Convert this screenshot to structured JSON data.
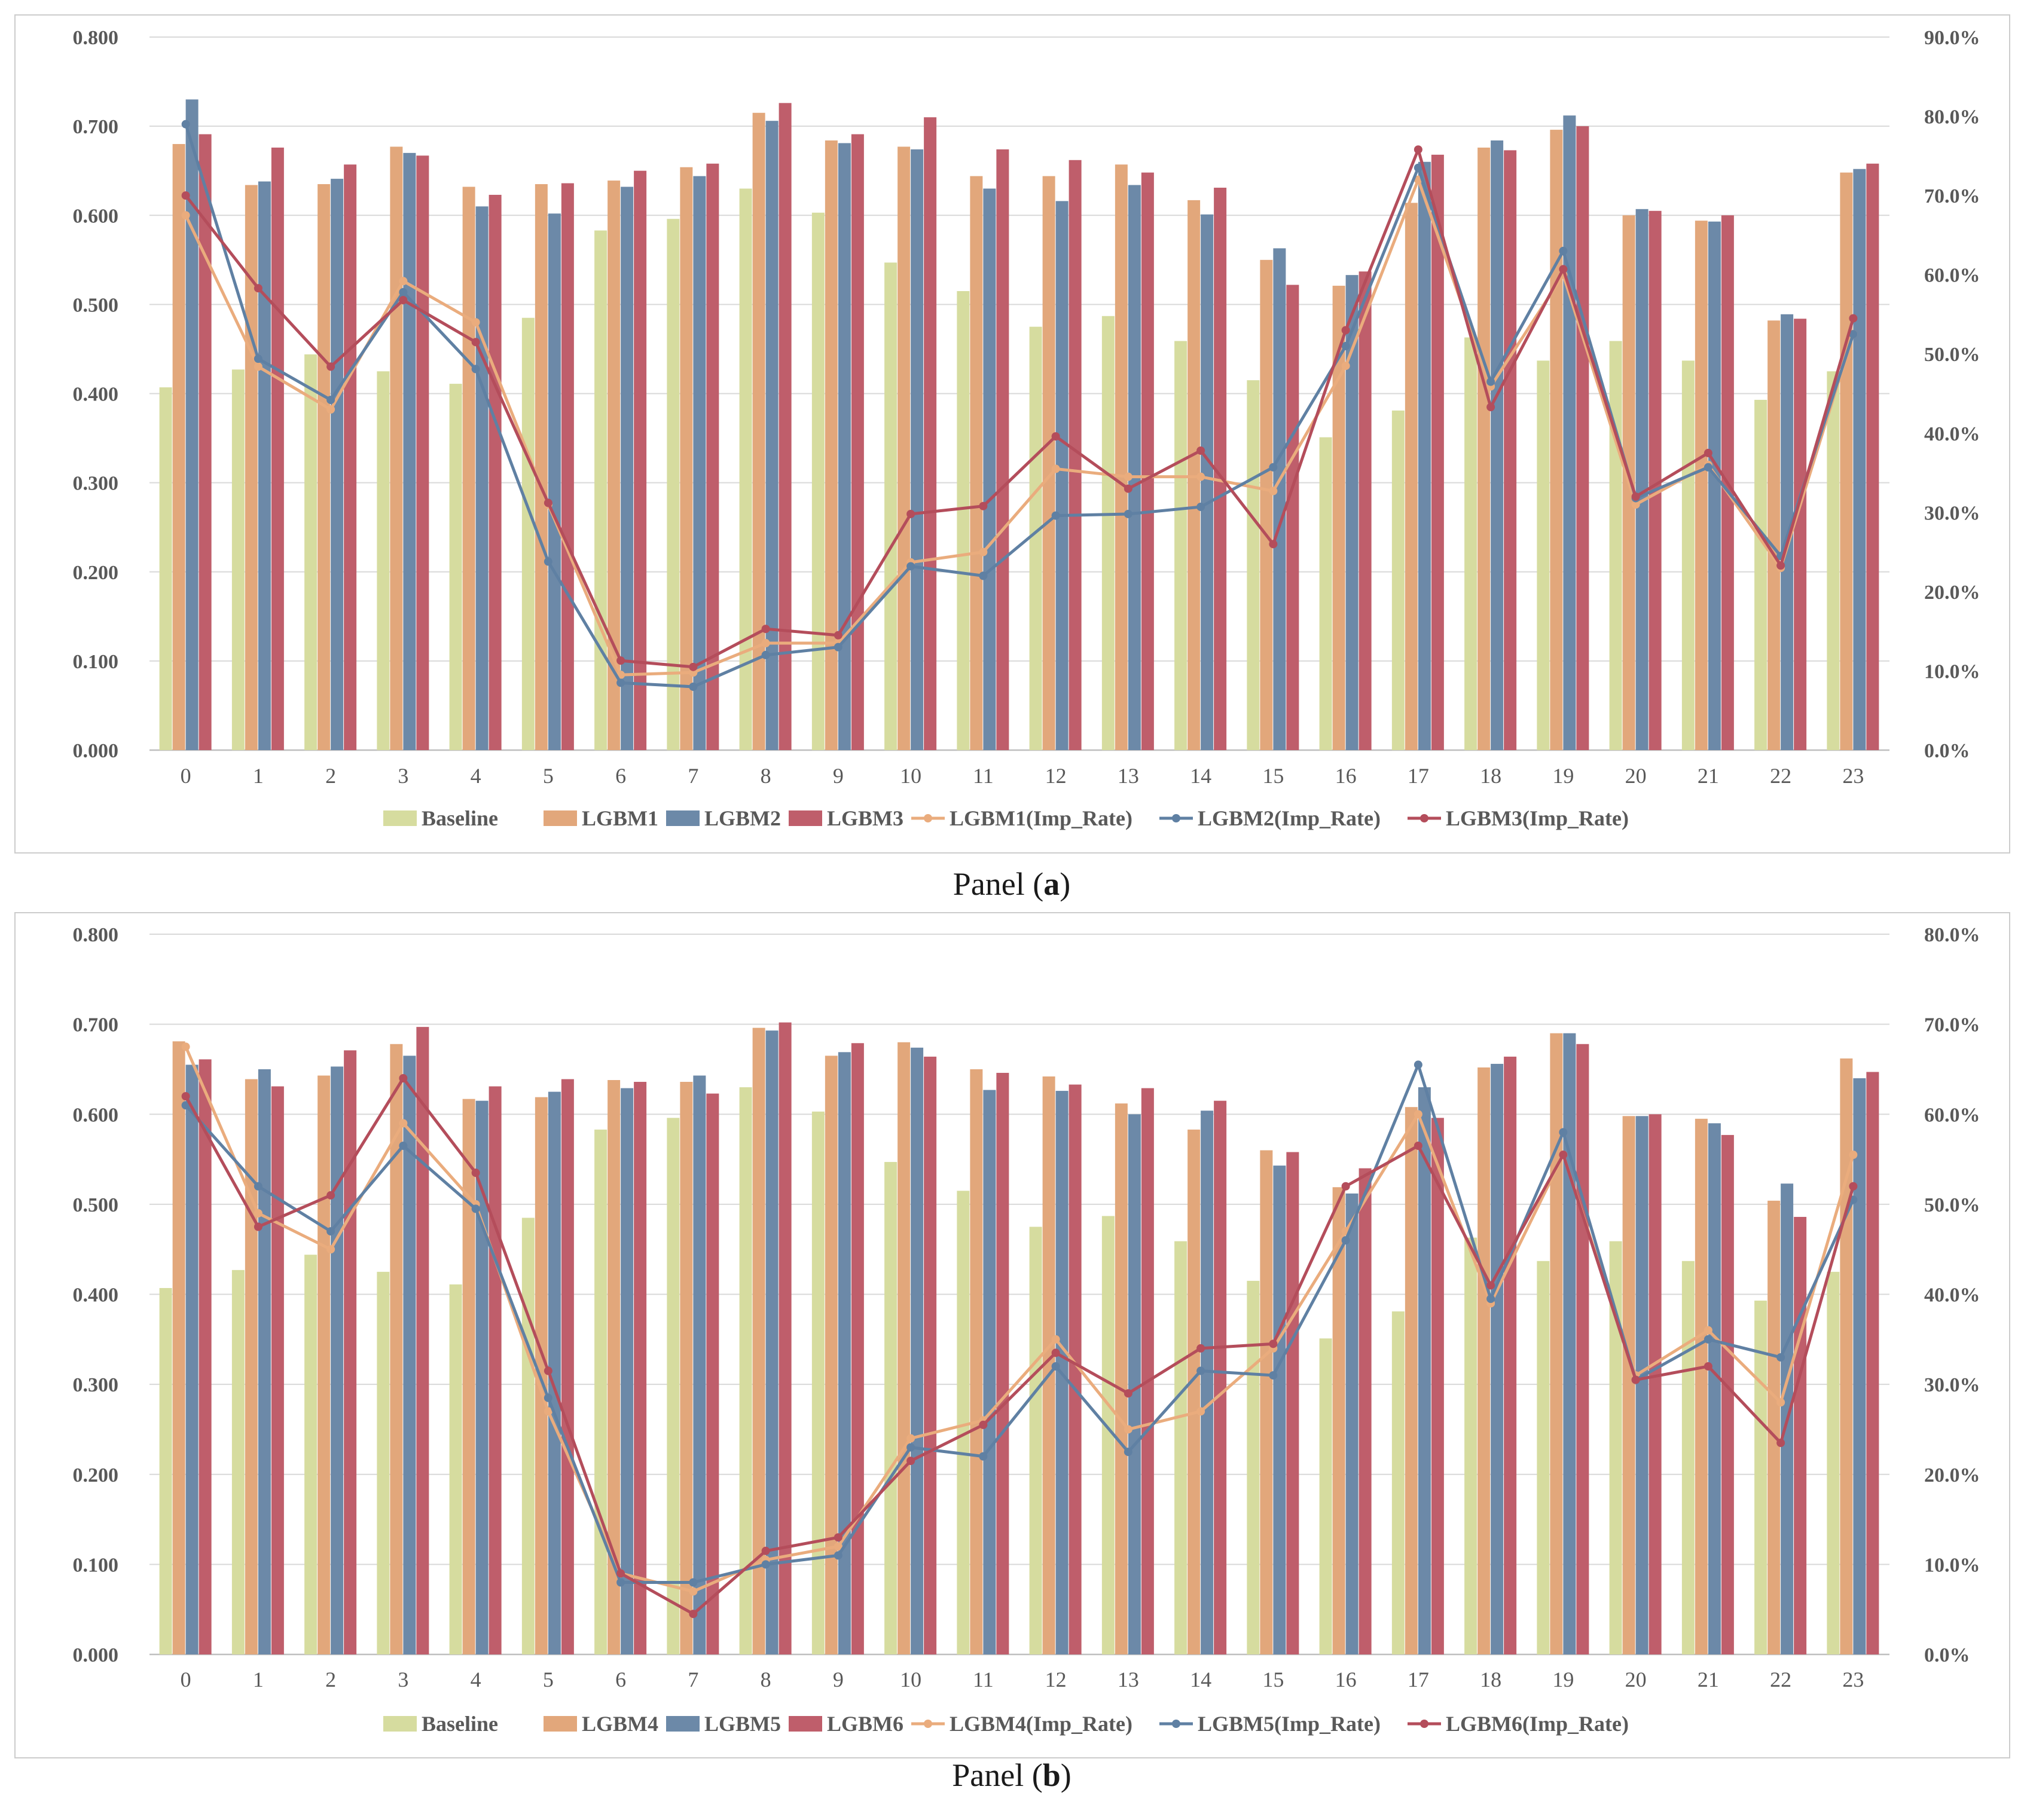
{
  "colors": {
    "baseline": "#d6dc9f",
    "lgbm_orange": "#e2a77b",
    "lgbm_blue": "#6c89a8",
    "lgbm_red": "#bf5e6b",
    "line_orange": "#eaac7d",
    "line_blue": "#5f80a3",
    "line_red": "#b44d5b"
  },
  "chart_data": [
    {
      "type": "bar",
      "panel_caption": {
        "prefix": "Panel (",
        "letter": "a",
        "suffix": ")"
      },
      "categories": [
        "0",
        "1",
        "2",
        "3",
        "4",
        "5",
        "6",
        "7",
        "8",
        "9",
        "10",
        "11",
        "12",
        "13",
        "14",
        "15",
        "16",
        "17",
        "18",
        "19",
        "20",
        "21",
        "22",
        "23"
      ],
      "y_left": {
        "min": 0,
        "max": 0.8,
        "ticks": [
          "0.000",
          "0.100",
          "0.200",
          "0.300",
          "0.400",
          "0.500",
          "0.600",
          "0.700",
          "0.800"
        ]
      },
      "y_right": {
        "min": 0,
        "max": 0.9,
        "ticks": [
          "0.0%",
          "10.0%",
          "20.0%",
          "30.0%",
          "40.0%",
          "50.0%",
          "60.0%",
          "70.0%",
          "80.0%",
          "90.0%"
        ]
      },
      "bar_series": [
        {
          "name": "Baseline",
          "values": [
            0.407,
            0.427,
            0.444,
            0.425,
            0.411,
            0.485,
            0.583,
            0.596,
            0.63,
            0.603,
            0.547,
            0.515,
            0.475,
            0.487,
            0.459,
            0.415,
            0.351,
            0.381,
            0.463,
            0.437,
            0.459,
            0.437,
            0.393,
            0.425
          ]
        },
        {
          "name": "LGBM1",
          "values": [
            0.68,
            0.634,
            0.635,
            0.677,
            0.632,
            0.635,
            0.639,
            0.654,
            0.715,
            0.684,
            0.677,
            0.644,
            0.644,
            0.657,
            0.617,
            0.55,
            0.521,
            0.614,
            0.676,
            0.696,
            0.6,
            0.594,
            0.482,
            0.648
          ]
        },
        {
          "name": "LGBM2",
          "values": [
            0.73,
            0.638,
            0.641,
            0.67,
            0.61,
            0.602,
            0.632,
            0.644,
            0.706,
            0.681,
            0.674,
            0.63,
            0.616,
            0.634,
            0.601,
            0.563,
            0.533,
            0.66,
            0.684,
            0.712,
            0.607,
            0.593,
            0.489,
            0.652
          ]
        },
        {
          "name": "LGBM3",
          "values": [
            0.691,
            0.676,
            0.657,
            0.667,
            0.623,
            0.636,
            0.65,
            0.658,
            0.726,
            0.691,
            0.71,
            0.674,
            0.662,
            0.648,
            0.631,
            0.522,
            0.537,
            0.668,
            0.673,
            0.7,
            0.605,
            0.6,
            0.484,
            0.658
          ]
        }
      ],
      "line_series": [
        {
          "name": "LGBM1(Imp_Rate)",
          "values": [
            0.675,
            0.484,
            0.43,
            0.592,
            0.54,
            0.31,
            0.095,
            0.098,
            0.135,
            0.135,
            0.237,
            0.25,
            0.355,
            0.345,
            0.345,
            0.327,
            0.485,
            0.72,
            0.459,
            0.6,
            0.31,
            0.36,
            0.23,
            0.525
          ]
        },
        {
          "name": "LGBM2(Imp_Rate)",
          "values": [
            0.79,
            0.494,
            0.442,
            0.578,
            0.481,
            0.238,
            0.085,
            0.08,
            0.12,
            0.13,
            0.232,
            0.22,
            0.296,
            0.298,
            0.307,
            0.357,
            0.51,
            0.735,
            0.465,
            0.63,
            0.318,
            0.357,
            0.245,
            0.525
          ]
        },
        {
          "name": "LGBM3(Imp_Rate)",
          "values": [
            0.7,
            0.583,
            0.484,
            0.568,
            0.515,
            0.312,
            0.113,
            0.105,
            0.153,
            0.145,
            0.298,
            0.308,
            0.396,
            0.33,
            0.378,
            0.26,
            0.53,
            0.758,
            0.433,
            0.607,
            0.32,
            0.375,
            0.233,
            0.545
          ]
        }
      ]
    },
    {
      "type": "bar",
      "panel_caption": {
        "prefix": "Panel (",
        "letter": "b",
        "suffix": ")"
      },
      "categories": [
        "0",
        "1",
        "2",
        "3",
        "4",
        "5",
        "6",
        "7",
        "8",
        "9",
        "10",
        "11",
        "12",
        "13",
        "14",
        "15",
        "16",
        "17",
        "18",
        "19",
        "20",
        "21",
        "22",
        "23"
      ],
      "y_left": {
        "min": 0,
        "max": 0.8,
        "ticks": [
          "0.000",
          "0.100",
          "0.200",
          "0.300",
          "0.400",
          "0.500",
          "0.600",
          "0.700",
          "0.800"
        ]
      },
      "y_right": {
        "min": 0,
        "max": 0.8,
        "ticks": [
          "0.0%",
          "10.0%",
          "20.0%",
          "30.0%",
          "40.0%",
          "50.0%",
          "60.0%",
          "70.0%",
          "80.0%"
        ]
      },
      "bar_series": [
        {
          "name": "Baseline",
          "values": [
            0.407,
            0.427,
            0.444,
            0.425,
            0.411,
            0.485,
            0.583,
            0.596,
            0.63,
            0.603,
            0.547,
            0.515,
            0.475,
            0.487,
            0.459,
            0.415,
            0.351,
            0.381,
            0.463,
            0.437,
            0.459,
            0.437,
            0.393,
            0.425
          ]
        },
        {
          "name": "LGBM4",
          "values": [
            0.681,
            0.639,
            0.643,
            0.678,
            0.617,
            0.619,
            0.638,
            0.636,
            0.696,
            0.665,
            0.68,
            0.65,
            0.642,
            0.612,
            0.583,
            0.56,
            0.519,
            0.608,
            0.652,
            0.69,
            0.598,
            0.595,
            0.504,
            0.662
          ]
        },
        {
          "name": "LGBM5",
          "values": [
            0.655,
            0.65,
            0.653,
            0.665,
            0.615,
            0.625,
            0.629,
            0.643,
            0.693,
            0.669,
            0.674,
            0.627,
            0.626,
            0.6,
            0.604,
            0.543,
            0.512,
            0.63,
            0.656,
            0.69,
            0.598,
            0.59,
            0.523,
            0.64
          ]
        },
        {
          "name": "LGBM6",
          "values": [
            0.661,
            0.631,
            0.671,
            0.697,
            0.631,
            0.639,
            0.636,
            0.623,
            0.702,
            0.679,
            0.664,
            0.646,
            0.633,
            0.629,
            0.615,
            0.558,
            0.54,
            0.596,
            0.664,
            0.678,
            0.6,
            0.577,
            0.486,
            0.647
          ]
        }
      ],
      "line_series": [
        {
          "name": "LGBM4(Imp_Rate)",
          "values": [
            0.675,
            0.49,
            0.45,
            0.59,
            0.5,
            0.27,
            0.09,
            0.07,
            0.105,
            0.12,
            0.24,
            0.26,
            0.35,
            0.25,
            0.27,
            0.34,
            0.47,
            0.6,
            0.39,
            0.555,
            0.31,
            0.36,
            0.28,
            0.555
          ]
        },
        {
          "name": "LGBM5(Imp_Rate)",
          "values": [
            0.61,
            0.52,
            0.47,
            0.565,
            0.495,
            0.285,
            0.08,
            0.08,
            0.1,
            0.11,
            0.23,
            0.22,
            0.32,
            0.225,
            0.315,
            0.31,
            0.46,
            0.655,
            0.395,
            0.58,
            0.305,
            0.35,
            0.33,
            0.505
          ]
        },
        {
          "name": "LGBM6(Imp_Rate)",
          "values": [
            0.62,
            0.475,
            0.51,
            0.64,
            0.535,
            0.315,
            0.09,
            0.045,
            0.115,
            0.13,
            0.215,
            0.255,
            0.335,
            0.29,
            0.34,
            0.345,
            0.52,
            0.565,
            0.41,
            0.555,
            0.305,
            0.32,
            0.235,
            0.52
          ]
        }
      ]
    }
  ]
}
